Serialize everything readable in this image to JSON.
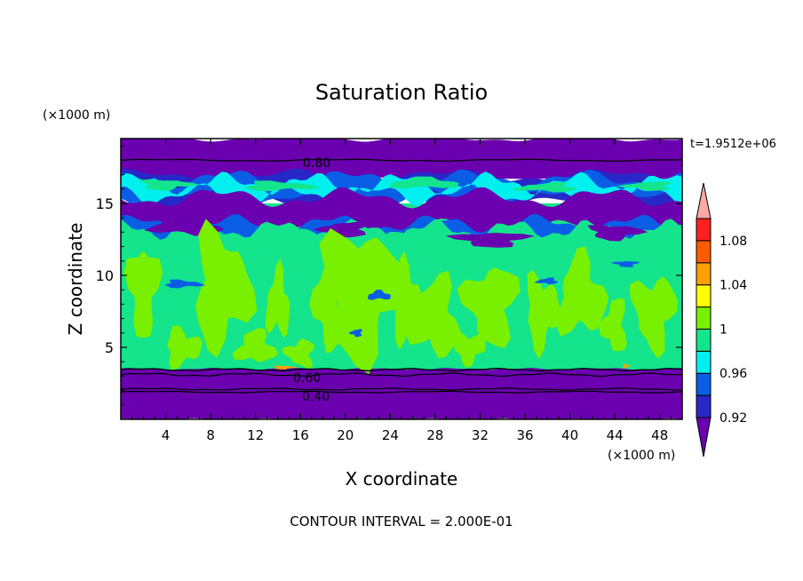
{
  "chart_data": {
    "type": "heatmap",
    "title": "Saturation Ratio",
    "xlabel": "X coordinate",
    "ylabel": "Z coordinate",
    "x_unit": "(×1000 m)",
    "y_unit": "(×1000 m)",
    "time_label": "t=1.9512e+06",
    "footer": "CONTOUR INTERVAL = 2.000E-01",
    "xlim": [
      0,
      50
    ],
    "ylim": [
      0,
      19.5
    ],
    "x_ticks": [
      "4",
      "8",
      "12",
      "16",
      "20",
      "24",
      "28",
      "32",
      "36",
      "40",
      "44",
      "48"
    ],
    "y_ticks": [
      "5",
      "10",
      "15"
    ],
    "contour_labels": [
      "0.80",
      "0.60",
      "0.40"
    ],
    "colorbar": {
      "tick_labels": [
        "1.08",
        "1.04",
        "1",
        "0.96",
        "0.92"
      ],
      "colors": [
        "#6a00b0",
        "#2828c8",
        "#0a5ee6",
        "#00f0f0",
        "#14e48c",
        "#78f000",
        "#ffff00",
        "#ffa000",
        "#ff5a00",
        "#ff2020",
        "#ffa8a8"
      ],
      "extend": "both"
    }
  }
}
